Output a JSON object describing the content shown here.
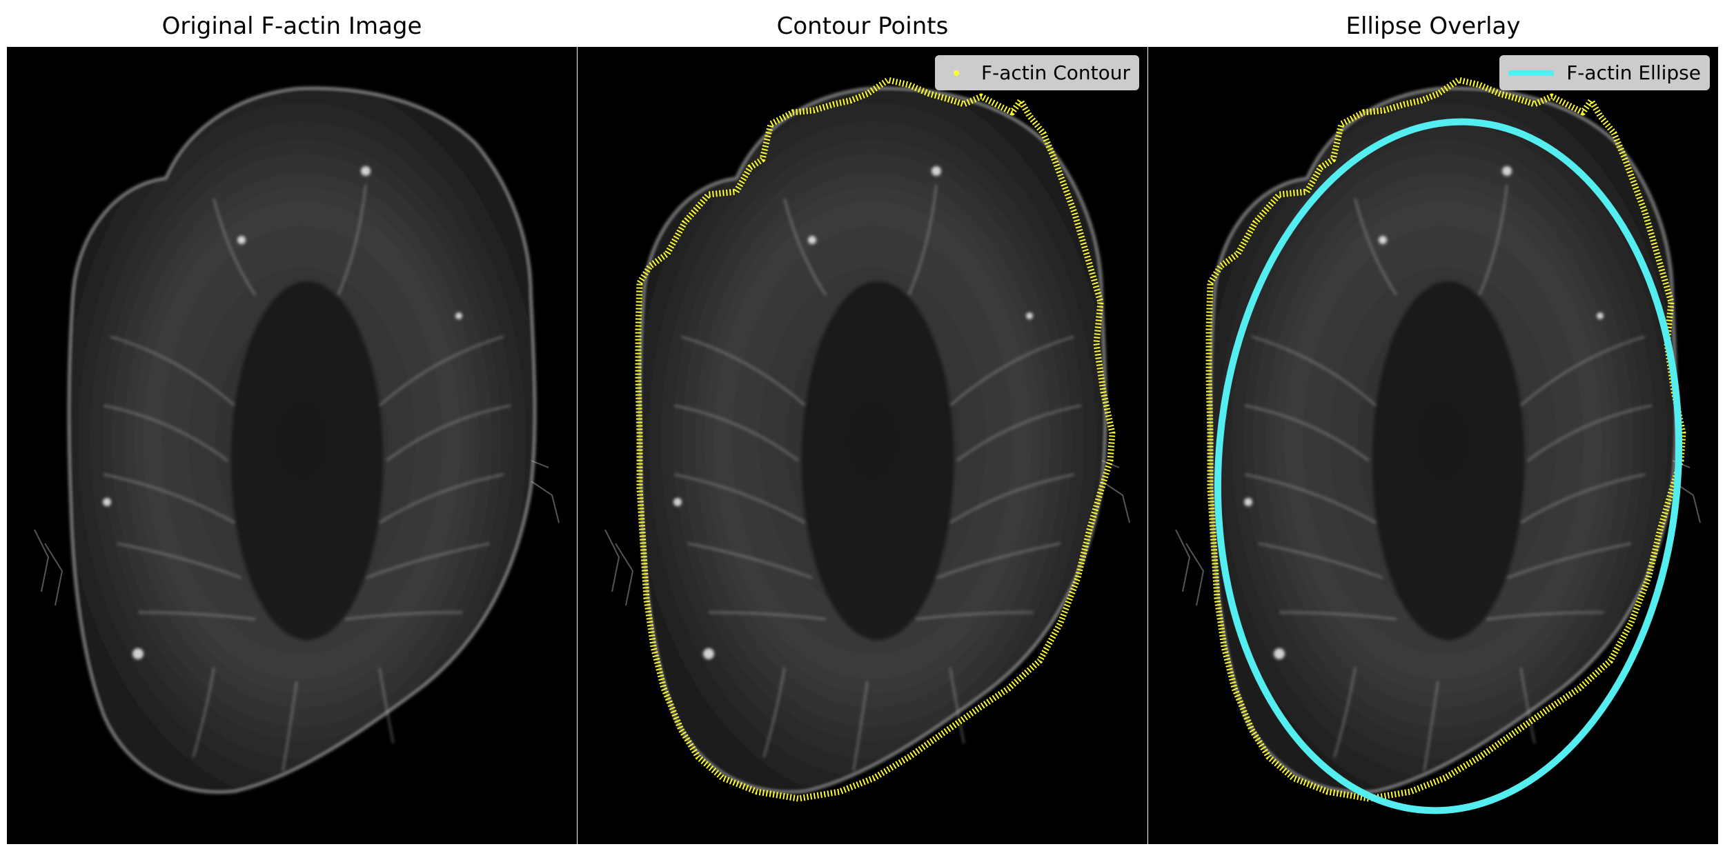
{
  "figure": {
    "panels": [
      {
        "title": "Original F-actin Image"
      },
      {
        "title": "Contour Points",
        "legend_label": "F-actin Contour"
      },
      {
        "title": "Ellipse Overlay",
        "legend_label": "F-actin Ellipse"
      }
    ],
    "colors": {
      "background": "#000000",
      "cell_signal": "#d9d9d9",
      "contour": "#ffff33",
      "ellipse": "#55eef0"
    }
  }
}
